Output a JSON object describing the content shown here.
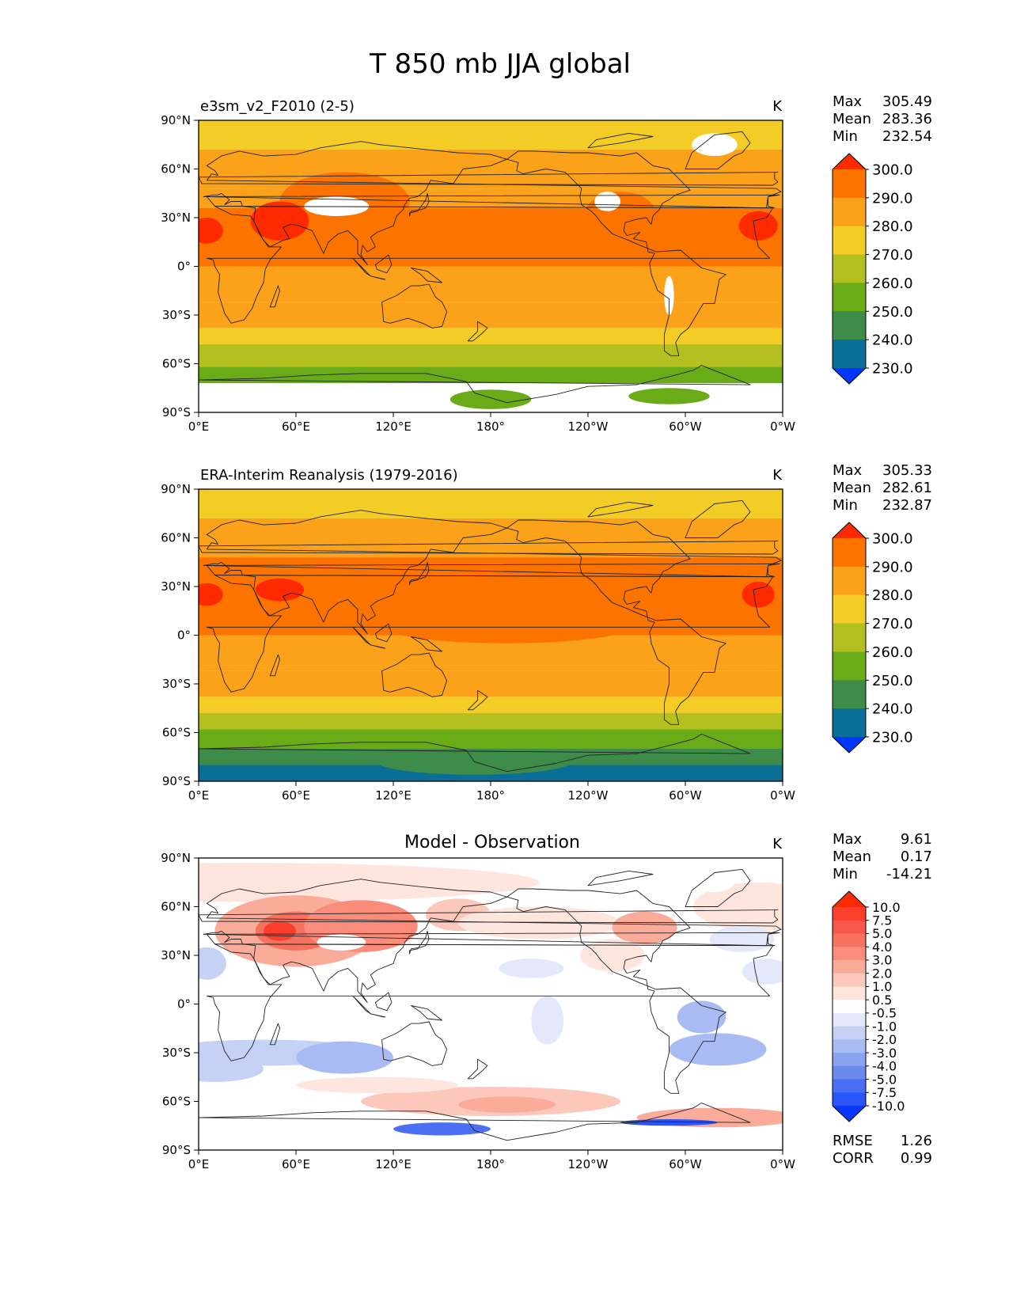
{
  "page": {
    "title": "T 850 mb JJA global"
  },
  "axes": {
    "lat_ticks": [
      "90°N",
      "60°N",
      "30°N",
      "0°",
      "30°S",
      "60°S",
      "90°S"
    ],
    "lon_ticks": [
      "0°E",
      "60°E",
      "120°E",
      "180°",
      "120°W",
      "60°W",
      "0°W"
    ]
  },
  "chart_data": [
    {
      "type": "heatmap",
      "panel": "test",
      "title": "e3sm_v2_F2010 (2-5)",
      "units": "K",
      "stats": [
        {
          "label": "Max",
          "value": "305.49"
        },
        {
          "label": "Mean",
          "value": "283.36"
        },
        {
          "label": "Min",
          "value": "232.54"
        }
      ],
      "levels": [
        "300.0",
        "290.0",
        "280.0",
        "270.0",
        "260.0",
        "250.0",
        "240.0",
        "230.0"
      ],
      "colors": [
        "#ff2a00",
        "#fc7300",
        "#fca21a",
        "#f4cc26",
        "#b4c020",
        "#6aab18",
        "#3d8c4a",
        "#0a6e96",
        "#0037ff"
      ],
      "bands": [
        {
          "lat": [
            90,
            72
          ],
          "level": 3
        },
        {
          "lat": [
            72,
            48
          ],
          "level": 2
        },
        {
          "lat": [
            48,
            36
          ],
          "level": 2
        },
        {
          "lat": [
            36,
            0
          ],
          "level": 1
        },
        {
          "lat": [
            0,
            -22
          ],
          "level": 2
        },
        {
          "lat": [
            -22,
            -38
          ],
          "level": 2
        },
        {
          "lat": [
            -38,
            -48
          ],
          "level": 3
        },
        {
          "lat": [
            -48,
            -62
          ],
          "level": 4
        },
        {
          "lat": [
            -62,
            -90
          ],
          "level": 5
        }
      ]
    },
    {
      "type": "heatmap",
      "panel": "reference",
      "title": "ERA-Interim Reanalysis (1979-2016)",
      "units": "K",
      "stats": [
        {
          "label": "Max",
          "value": "305.33"
        },
        {
          "label": "Mean",
          "value": "282.61"
        },
        {
          "label": "Min",
          "value": "232.87"
        }
      ],
      "levels": [
        "300.0",
        "290.0",
        "280.0",
        "270.0",
        "260.0",
        "250.0",
        "240.0",
        "230.0"
      ],
      "colors": [
        "#ff2a00",
        "#fc7300",
        "#fca21a",
        "#f4cc26",
        "#b4c020",
        "#6aab18",
        "#3d8c4a",
        "#0a6e96",
        "#0037ff"
      ],
      "bands": [
        {
          "lat": [
            90,
            72
          ],
          "level": 3
        },
        {
          "lat": [
            72,
            48
          ],
          "level": 2
        },
        {
          "lat": [
            48,
            0
          ],
          "level": 1
        },
        {
          "lat": [
            0,
            -22
          ],
          "level": 2
        },
        {
          "lat": [
            -22,
            -38
          ],
          "level": 2
        },
        {
          "lat": [
            -38,
            -48
          ],
          "level": 3
        },
        {
          "lat": [
            -48,
            -58
          ],
          "level": 4
        },
        {
          "lat": [
            -58,
            -70
          ],
          "level": 5
        },
        {
          "lat": [
            -70,
            -80
          ],
          "level": 6
        },
        {
          "lat": [
            -80,
            -90
          ],
          "level": 7
        }
      ]
    },
    {
      "type": "heatmap",
      "panel": "difference",
      "title": "Model - Observation",
      "units": "K",
      "stats": [
        {
          "label": "Max",
          "value": "9.61"
        },
        {
          "label": "Mean",
          "value": "0.17"
        },
        {
          "label": "Min",
          "value": "-14.21"
        }
      ],
      "levels": [
        "10.0",
        "7.5",
        "5.0",
        "4.0",
        "3.0",
        "2.0",
        "1.0",
        "0.5",
        "-0.5",
        "-1.0",
        "-2.0",
        "-3.0",
        "-4.0",
        "-5.0",
        "-7.5",
        "-10.0"
      ],
      "colors": [
        "#ff2a00",
        "#fc3f2d",
        "#f8574c",
        "#f7715f",
        "#f98c7a",
        "#fbab9a",
        "#fdc8bc",
        "#fee6df",
        "#ffffff",
        "#e3e9fb",
        "#c5d2f6",
        "#a9bbf3",
        "#8aa2ef",
        "#6a8bec",
        "#4a6ff3",
        "#2a55f8",
        "#0a37ff"
      ],
      "footer_stats": [
        {
          "label": "RMSE",
          "value": "1.26"
        },
        {
          "label": "CORR",
          "value": "0.99"
        }
      ]
    }
  ]
}
